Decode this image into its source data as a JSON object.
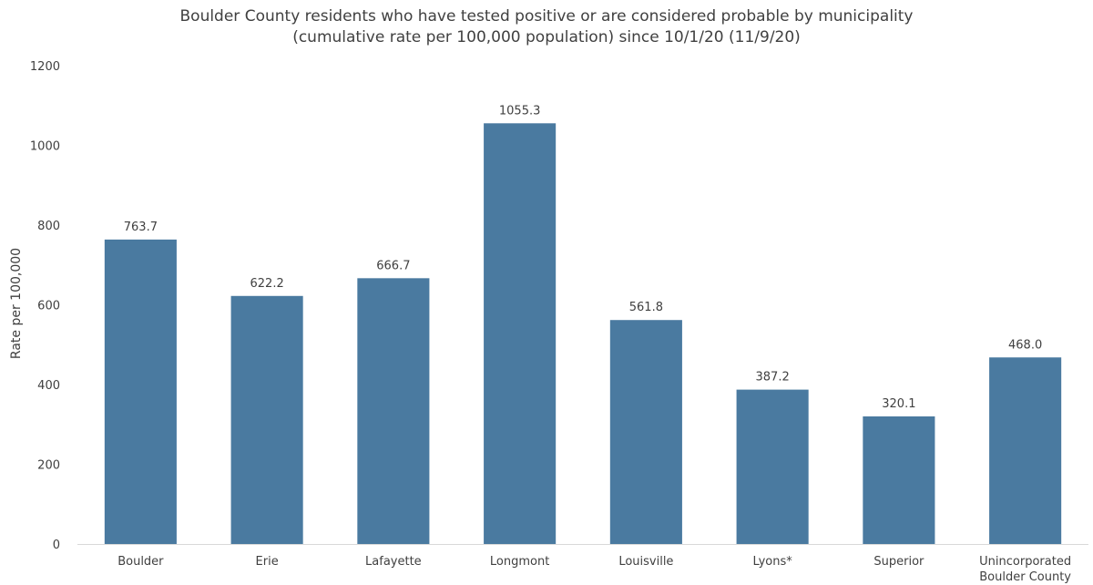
{
  "chart_data": {
    "type": "bar",
    "title": "Boulder County residents who have tested positive or are considered probable by municipality",
    "subtitle": "(cumulative rate per 100,000 population) since 10/1/20 (11/9/20)",
    "xlabel": "",
    "ylabel": "Rate per 100,000",
    "ylim": [
      0,
      1200
    ],
    "yticks": [
      0,
      200,
      400,
      600,
      800,
      1000,
      1200
    ],
    "grid": false,
    "categories": [
      [
        "Boulder"
      ],
      [
        "Erie"
      ],
      [
        "Lafayette"
      ],
      [
        "Longmont"
      ],
      [
        "Louisville"
      ],
      [
        "Lyons*"
      ],
      [
        "Superior"
      ],
      [
        "Unincorporated",
        "Boulder County"
      ]
    ],
    "values": [
      763.7,
      622.2,
      666.7,
      1055.3,
      561.8,
      387.2,
      320.1,
      468.0
    ],
    "data_labels": [
      "763.7",
      "622.2",
      "666.7",
      "1055.3",
      "561.8",
      "387.2",
      "320.1",
      "468.0"
    ],
    "bar_color": "#4a7aa0"
  }
}
